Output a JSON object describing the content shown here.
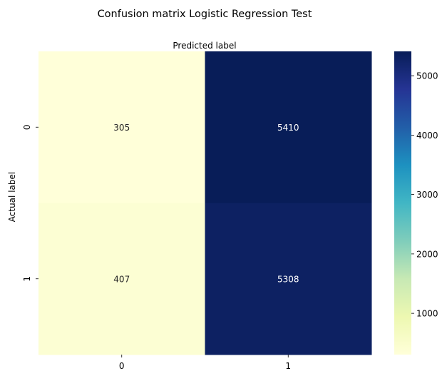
{
  "chart_data": {
    "type": "heatmap",
    "title": "Confusion matrix Logistic Regression Test",
    "xlabel": "Predicted label",
    "ylabel": "Actual label",
    "x_categories": [
      "0",
      "1"
    ],
    "y_categories": [
      "0",
      "1"
    ],
    "values": [
      [
        305,
        5410
      ],
      [
        407,
        5308
      ]
    ],
    "colormap": "YlGnBu",
    "colorbar": {
      "ticks": [
        1000,
        2000,
        3000,
        4000,
        5000
      ],
      "range": [
        305,
        5410
      ]
    },
    "colors": {
      "low": "#ffffd9",
      "high": "#081d58"
    }
  }
}
